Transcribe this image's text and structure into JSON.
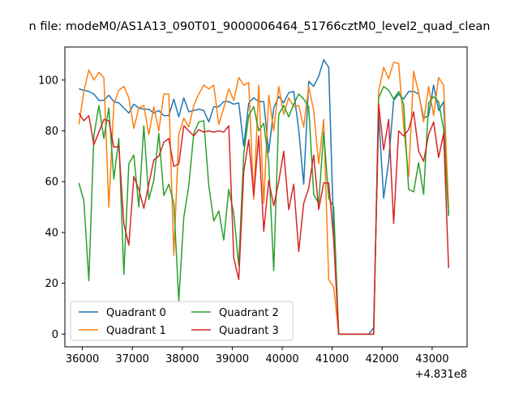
{
  "chart_data": {
    "type": "line",
    "title": "n file: modeM0/AS1A13_090T01_9000006464_51766cztM0_level2_quad_clean",
    "xlabel": "",
    "ylabel": "",
    "offset_label": "+4.831e8",
    "xlim": [
      35650,
      43700
    ],
    "ylim": [
      -5,
      113
    ],
    "x_ticks": [
      {
        "value": 36000,
        "label": "36000"
      },
      {
        "value": 37000,
        "label": "37000"
      },
      {
        "value": 38000,
        "label": "38000"
      },
      {
        "value": 39000,
        "label": "39000"
      },
      {
        "value": 40000,
        "label": "40000"
      },
      {
        "value": 41000,
        "label": "41000"
      },
      {
        "value": 42000,
        "label": "42000"
      },
      {
        "value": 43000,
        "label": "43000"
      }
    ],
    "y_ticks": [
      {
        "value": 0,
        "label": "0"
      },
      {
        "value": 20,
        "label": "20"
      },
      {
        "value": 40,
        "label": "40"
      },
      {
        "value": 60,
        "label": "60"
      },
      {
        "value": 80,
        "label": "80"
      },
      {
        "value": 100,
        "label": "100"
      }
    ],
    "grid": false,
    "legend": {
      "placement": "lower-left",
      "columns": 2
    },
    "x": [
      35930,
      36030,
      36130,
      36230,
      36330,
      36430,
      36530,
      36630,
      36730,
      36830,
      36930,
      37030,
      37130,
      37230,
      37330,
      37430,
      37530,
      37630,
      37730,
      37830,
      37930,
      38030,
      38130,
      38230,
      38330,
      38430,
      38530,
      38630,
      38730,
      38830,
      38930,
      39030,
      39130,
      39230,
      39330,
      39430,
      39530,
      39630,
      39730,
      39830,
      39930,
      40030,
      40130,
      40230,
      40330,
      40430,
      40530,
      40630,
      40730,
      40830,
      40930,
      41030,
      41130,
      41230,
      41330,
      41430,
      41530,
      41630,
      41730,
      41830,
      41930,
      42030,
      42130,
      42230,
      42330,
      42430,
      42530,
      42630,
      42730,
      42830,
      42930,
      43030,
      43130,
      43230,
      43330
    ],
    "series": [
      {
        "name": "Quadrant 0",
        "color": "#1f77b4",
        "values": [
          96.5,
          96,
          95.5,
          94.5,
          92,
          92,
          94,
          91.5,
          91,
          89,
          87,
          90.5,
          89,
          88.5,
          88.5,
          87,
          88,
          86,
          86,
          92.5,
          85.5,
          93,
          87.5,
          88,
          88.5,
          88,
          83.5,
          89.5,
          89.5,
          91.5,
          91.5,
          90.5,
          91,
          74,
          91,
          93,
          91.5,
          91.5,
          71.5,
          89,
          93.5,
          91,
          95,
          95.5,
          80.5,
          59,
          99.5,
          97.5,
          101.5,
          108,
          105,
          40,
          0,
          0,
          0,
          0,
          0,
          0,
          0,
          2.5,
          86.5,
          53.5,
          68,
          92,
          94.5,
          92.5,
          95.5,
          95.5,
          94.5,
          85,
          86,
          98,
          88,
          91.5,
          47
        ]
      },
      {
        "name": "Quadrant 1",
        "color": "#ff7f0e",
        "values": [
          82.5,
          95.5,
          104,
          100,
          103,
          101,
          50,
          90.5,
          96,
          97.5,
          93,
          81,
          89,
          90,
          78.5,
          89.5,
          80,
          94.5,
          94.5,
          31,
          78.5,
          85,
          81.5,
          90,
          94.5,
          98,
          96.5,
          98,
          82.5,
          89,
          96.5,
          92,
          101,
          98,
          99,
          53,
          98,
          51.5,
          94,
          80,
          97.5,
          86.5,
          93,
          89.5,
          90,
          81.5,
          97.5,
          88,
          67,
          84.5,
          21.5,
          18.5,
          0,
          0,
          0,
          0,
          0,
          0,
          0,
          0,
          95.5,
          105,
          100.5,
          107,
          106.5,
          82,
          62,
          103.5,
          95,
          83.5,
          97.5,
          86,
          101,
          98,
          49.5
        ]
      },
      {
        "name": "Quadrant 2",
        "color": "#2ca02c",
        "values": [
          59.5,
          52.5,
          21,
          78,
          90,
          77,
          89,
          61,
          77,
          23.5,
          67,
          70.5,
          50,
          82,
          53,
          60.5,
          79,
          54.5,
          59,
          51.5,
          13,
          46,
          58.5,
          79,
          83.5,
          84,
          58.5,
          44.5,
          48.5,
          37,
          57,
          47.5,
          27,
          71,
          86,
          89.5,
          80,
          83,
          67.5,
          25,
          86.5,
          90,
          85.5,
          90.5,
          94.5,
          92.5,
          89.5,
          55,
          51.5,
          79.5,
          53.5,
          50,
          0,
          0,
          0,
          0,
          0,
          0,
          0,
          0,
          93,
          97.5,
          96,
          92.5,
          95.5,
          90.5,
          57,
          56,
          67.5,
          55,
          91,
          93.5,
          91.5,
          80.5,
          46.5
        ]
      },
      {
        "name": "Quadrant 3",
        "color": "#d62728",
        "values": [
          87,
          84,
          86,
          74.5,
          79.5,
          84.5,
          84,
          73.5,
          74,
          43.5,
          35,
          62,
          57,
          49.5,
          59,
          68.5,
          70,
          75.5,
          77,
          66,
          67,
          82,
          80,
          78,
          80.5,
          79.5,
          80,
          79.5,
          80,
          79.5,
          82,
          30,
          21.5,
          64,
          76.5,
          54.5,
          78,
          40.5,
          60.5,
          50.5,
          60,
          72,
          49,
          59,
          32.5,
          51.5,
          57.5,
          70.5,
          49,
          59.5,
          59.5,
          37,
          0,
          0,
          0,
          0,
          0,
          0,
          0,
          0,
          90.5,
          72.5,
          84.5,
          43.5,
          80,
          78,
          80.5,
          87.5,
          72,
          68,
          78.5,
          83.5,
          69.5,
          79,
          26
        ]
      }
    ]
  }
}
